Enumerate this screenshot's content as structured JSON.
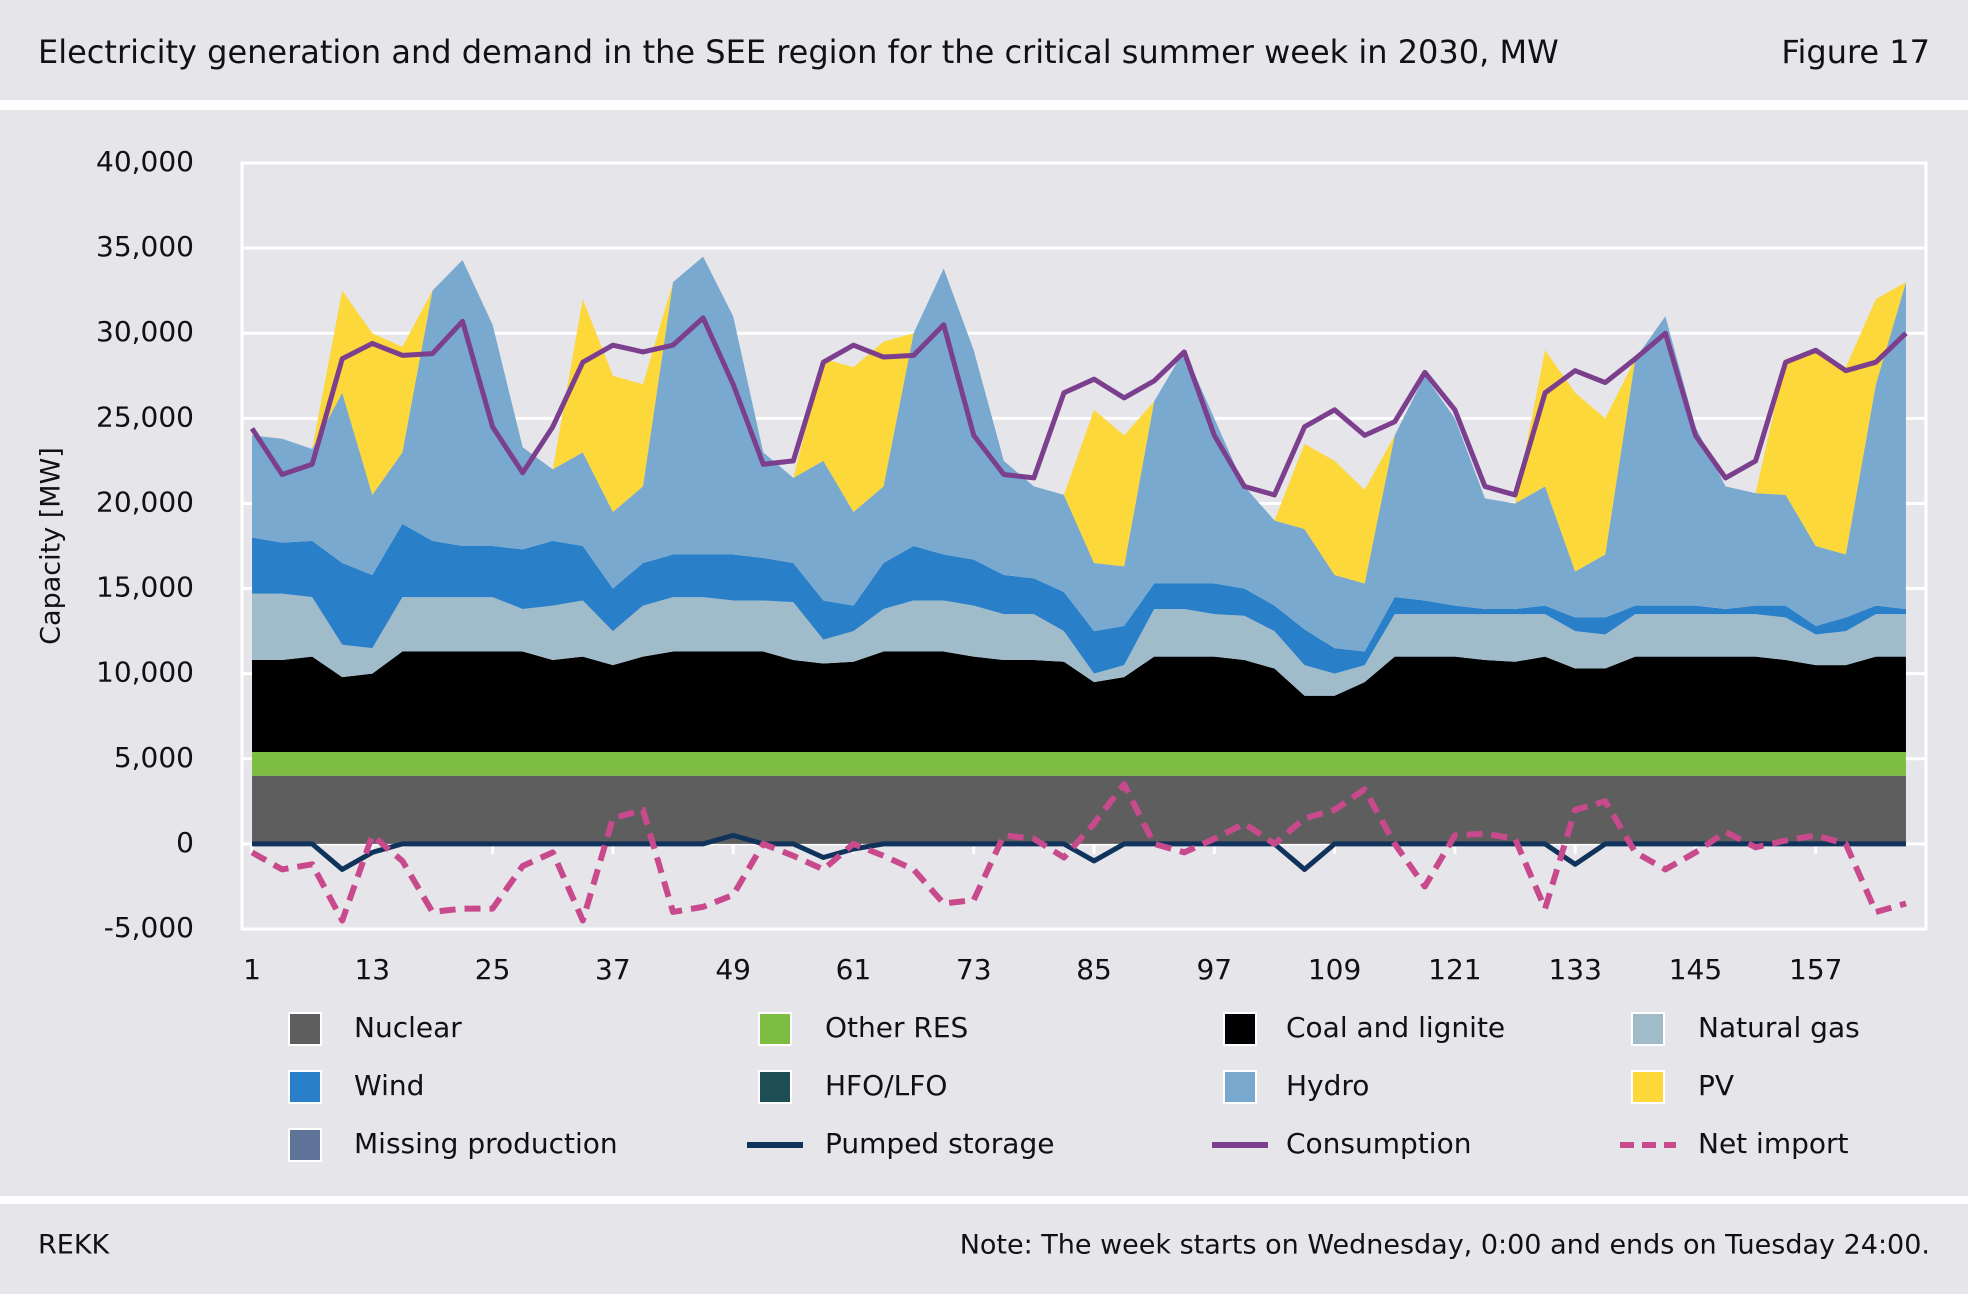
{
  "header": {
    "title": "Electricity generation and demand in the SEE region for the critical summer week in 2030, MW",
    "figure": "Figure 17"
  },
  "footer": {
    "source": "REKK",
    "note": "Note: The week starts on Wednesday, 0:00 and ends on Tuesday 24:00."
  },
  "chart_data": {
    "type": "stacked-area-line",
    "y_label": "Capacity [MW]",
    "x": [
      1,
      4,
      7,
      10,
      13,
      16,
      19,
      22,
      25,
      28,
      31,
      34,
      37,
      40,
      43,
      46,
      49,
      52,
      55,
      58,
      61,
      64,
      67,
      70,
      73,
      76,
      79,
      82,
      85,
      88,
      91,
      94,
      97,
      100,
      103,
      106,
      109,
      112,
      115,
      118,
      121,
      124,
      127,
      130,
      133,
      136,
      139,
      142,
      145,
      148,
      151,
      154,
      157,
      160,
      163,
      166
    ],
    "xlim": [
      0,
      168
    ],
    "xticks": [
      1,
      13,
      25,
      37,
      49,
      61,
      73,
      85,
      97,
      109,
      121,
      133,
      145,
      157
    ],
    "ylim": [
      -5000,
      40000
    ],
    "yticks": [
      {
        "value": -5000,
        "label": "-5,000"
      },
      0,
      {
        "value": 5000,
        "label": "5,000"
      },
      {
        "value": 10000,
        "label": "10,000"
      },
      {
        "value": 15000,
        "label": "15,000"
      },
      {
        "value": 20000,
        "label": "20,000"
      },
      {
        "value": 25000,
        "label": "25,000"
      },
      {
        "value": 30000,
        "label": "30,000"
      },
      {
        "value": 35000,
        "label": "35,000"
      },
      {
        "value": 40000,
        "label": "40,000"
      }
    ],
    "grid": true,
    "series": [
      {
        "name": "Nuclear",
        "kind": "area",
        "color": "#5f5e5e",
        "values": [
          4000,
          4000,
          4000,
          4000,
          4000,
          4000,
          4000,
          4000,
          4000,
          4000,
          4000,
          4000,
          4000,
          4000,
          4000,
          4000,
          4000,
          4000,
          4000,
          4000,
          4000,
          4000,
          4000,
          4000,
          4000,
          4000,
          4000,
          4000,
          4000,
          4000,
          4000,
          4000,
          4000,
          4000,
          4000,
          4000,
          4000,
          4000,
          4000,
          4000,
          4000,
          4000,
          4000,
          4000,
          4000,
          4000,
          4000,
          4000,
          4000,
          4000,
          4000,
          4000,
          4000,
          4000,
          4000,
          4000
        ]
      },
      {
        "name": "Other RES",
        "kind": "area",
        "color": "#7dbd42",
        "values": [
          1400,
          1400,
          1400,
          1400,
          1400,
          1400,
          1400,
          1400,
          1400,
          1400,
          1400,
          1400,
          1400,
          1400,
          1400,
          1400,
          1400,
          1400,
          1400,
          1400,
          1400,
          1400,
          1400,
          1400,
          1400,
          1400,
          1400,
          1400,
          1400,
          1400,
          1400,
          1400,
          1400,
          1400,
          1400,
          1400,
          1400,
          1400,
          1400,
          1400,
          1400,
          1400,
          1400,
          1400,
          1400,
          1400,
          1400,
          1400,
          1400,
          1400,
          1400,
          1400,
          1400,
          1400,
          1400,
          1400
        ]
      },
      {
        "name": "Coal and lignite",
        "kind": "area",
        "color": "#000000",
        "values": [
          5400,
          5400,
          5600,
          4400,
          4600,
          5900,
          5900,
          5900,
          5900,
          5900,
          5400,
          5600,
          5100,
          5600,
          5900,
          5900,
          5900,
          5900,
          5400,
          5200,
          5300,
          5900,
          5900,
          5900,
          5600,
          5400,
          5400,
          5300,
          4100,
          4400,
          5600,
          5600,
          5600,
          5400,
          4900,
          3300,
          3300,
          4100,
          5600,
          5600,
          5600,
          5400,
          5300,
          5600,
          4900,
          4900,
          5600,
          5600,
          5600,
          5600,
          5600,
          5400,
          5100,
          5100,
          5600,
          5600
        ]
      },
      {
        "name": "Natural gas",
        "kind": "area",
        "color": "#a0bccb",
        "values": [
          3900,
          3900,
          3500,
          1900,
          1500,
          3200,
          3200,
          3200,
          3200,
          2500,
          3200,
          3300,
          2000,
          3000,
          3200,
          3200,
          3000,
          3000,
          3400,
          1400,
          1800,
          2500,
          3000,
          3000,
          3000,
          2700,
          2700,
          1800,
          500,
          700,
          2800,
          2800,
          2500,
          2600,
          2200,
          1800,
          1300,
          1000,
          2500,
          2500,
          2500,
          2700,
          2800,
          2500,
          2200,
          2000,
          2500,
          2500,
          2500,
          2500,
          2500,
          2500,
          1800,
          2000,
          2500,
          2500
        ]
      },
      {
        "name": "Wind",
        "kind": "area",
        "color": "#2a80c8",
        "values": [
          3300,
          3000,
          3300,
          4800,
          4300,
          4300,
          3300,
          3000,
          3000,
          3500,
          3800,
          3200,
          2500,
          2500,
          2500,
          2500,
          2700,
          2500,
          2300,
          2300,
          1500,
          2700,
          3200,
          2700,
          2700,
          2300,
          2100,
          2300,
          2500,
          2300,
          1500,
          1500,
          1800,
          1600,
          1500,
          2100,
          1500,
          800,
          1000,
          800,
          500,
          300,
          300,
          500,
          800,
          1000,
          500,
          500,
          500,
          300,
          500,
          700,
          500,
          800,
          500,
          300
        ]
      },
      {
        "name": "HFO/LFO",
        "kind": "area",
        "color": "#1d4f55",
        "values": [
          0,
          0,
          0,
          0,
          0,
          0,
          0,
          0,
          0,
          0,
          0,
          0,
          0,
          0,
          0,
          0,
          0,
          0,
          0,
          0,
          0,
          0,
          0,
          0,
          0,
          0,
          0,
          0,
          0,
          0,
          0,
          0,
          0,
          0,
          0,
          0,
          0,
          0,
          0,
          0,
          0,
          0,
          0,
          0,
          0,
          0,
          0,
          0,
          0,
          0,
          0,
          0,
          0,
          0,
          0,
          0
        ]
      },
      {
        "name": "Hydro",
        "kind": "area",
        "color": "#7aa9cf",
        "values": [
          6000,
          6100,
          5400,
          10000,
          4700,
          4200,
          14700,
          16800,
          13000,
          6000,
          4200,
          5500,
          4500,
          4500,
          16000,
          17500,
          14000,
          6200,
          5000,
          8200,
          5500,
          4500,
          12500,
          16800,
          12300,
          6700,
          5400,
          5700,
          4000,
          3500,
          10700,
          13700,
          9700,
          6000,
          5000,
          5900,
          4300,
          4000,
          9500,
          13200,
          11000,
          6500,
          6200,
          7000,
          2700,
          3700,
          14500,
          17000,
          10500,
          7200,
          6600,
          6500,
          4700,
          3700,
          13000,
          19200
        ]
      },
      {
        "name": "PV",
        "kind": "area",
        "color": "#fdd83a",
        "values": [
          0,
          0,
          0,
          6000,
          9500,
          6200,
          0,
          0,
          0,
          0,
          0,
          9000,
          8000,
          6000,
          0,
          0,
          0,
          0,
          0,
          6000,
          8500,
          8500,
          0,
          0,
          0,
          0,
          0,
          0,
          9000,
          7700,
          0,
          0,
          0,
          0,
          0,
          5000,
          6700,
          5500,
          0,
          0,
          0,
          0,
          0,
          8000,
          10500,
          8000,
          0,
          0,
          0,
          0,
          0,
          8000,
          11500,
          11000,
          5000,
          0
        ]
      },
      {
        "name": "Missing production",
        "kind": "area",
        "color": "#5f7498",
        "values": [
          0,
          0,
          0,
          0,
          0,
          0,
          0,
          0,
          0,
          0,
          0,
          0,
          0,
          0,
          0,
          0,
          0,
          0,
          0,
          0,
          0,
          0,
          0,
          0,
          0,
          0,
          0,
          0,
          0,
          0,
          0,
          0,
          0,
          0,
          0,
          0,
          0,
          0,
          0,
          0,
          0,
          0,
          0,
          0,
          0,
          0,
          0,
          0,
          0,
          0,
          0,
          0,
          0,
          0,
          0,
          0
        ]
      },
      {
        "name": "Pumped storage",
        "kind": "line",
        "color": "#10335c",
        "values": [
          0,
          0,
          0,
          -1500,
          -500,
          0,
          0,
          0,
          0,
          0,
          0,
          0,
          0,
          0,
          0,
          0,
          500,
          0,
          0,
          -800,
          -300,
          0,
          0,
          0,
          0,
          0,
          0,
          0,
          -1000,
          0,
          0,
          0,
          0,
          0,
          0,
          -1500,
          0,
          0,
          0,
          0,
          0,
          0,
          0,
          0,
          -1200,
          0,
          0,
          0,
          0,
          0,
          0,
          0,
          0,
          0,
          0,
          0
        ]
      },
      {
        "name": "Consumption",
        "kind": "line",
        "color": "#7b3f8e",
        "values": [
          24400,
          21700,
          22300,
          28500,
          29400,
          28700,
          28800,
          30700,
          24500,
          21800,
          24500,
          28300,
          29300,
          28900,
          29300,
          30900,
          27000,
          22300,
          22500,
          28300,
          29300,
          28600,
          28700,
          30500,
          24000,
          21700,
          21500,
          26500,
          27300,
          26200,
          27200,
          28900,
          24000,
          21000,
          20500,
          24500,
          25500,
          24000,
          24800,
          27700,
          25500,
          21000,
          20500,
          26500,
          27800,
          27100,
          28500,
          30000,
          24000,
          21500,
          22500,
          28300,
          29000,
          27800,
          28300,
          30000
        ]
      },
      {
        "name": "Net import",
        "kind": "line",
        "dash": true,
        "color": "#c84a8d",
        "values": [
          -500,
          -1500,
          -1200,
          -4500,
          500,
          -1000,
          -4000,
          -3800,
          -3800,
          -1300,
          -500,
          -4500,
          1500,
          2000,
          -4000,
          -3700,
          -3000,
          0,
          -700,
          -1500,
          0,
          -700,
          -1500,
          -3500,
          -3300,
          500,
          300,
          -800,
          1200,
          3500,
          0,
          -500,
          300,
          1200,
          0,
          1500,
          2000,
          3200,
          0,
          -2500,
          500,
          600,
          300,
          -3800,
          2000,
          2500,
          -500,
          -1500,
          -500,
          700,
          -200,
          200,
          500,
          0,
          -4000,
          -3500
        ]
      }
    ]
  }
}
